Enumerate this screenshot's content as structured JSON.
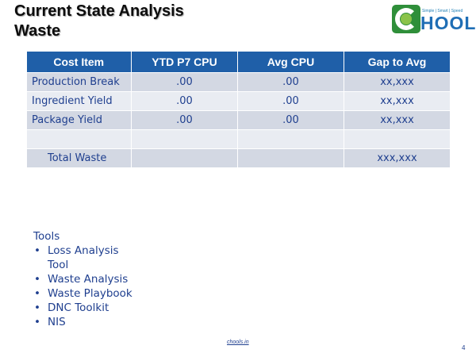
{
  "slide": {
    "title_line1": "Current State Analysis",
    "title_line2": "Waste"
  },
  "logo": {
    "tagline": "Simple | Smart | Speed",
    "wordmark": "HOOLS",
    "brand_color": "#1f6eb5",
    "mark_color": "#2f8f3a"
  },
  "table": {
    "headers": [
      "Cost Item",
      "YTD P7 CPU",
      "Avg CPU",
      "Gap to Avg"
    ],
    "rows": [
      [
        "Production Break",
        ".00",
        ".00",
        "xx,xxx"
      ],
      [
        "Ingredient Yield",
        ".00",
        ".00",
        "xx,xxx"
      ],
      [
        "Package Yield",
        ".00",
        ".00",
        "xx,xxx"
      ],
      [
        "",
        "",
        "",
        ""
      ],
      [
        "Total Waste",
        "",
        "",
        "xxx,xxx"
      ]
    ],
    "header_color": "#1f5fa8"
  },
  "tools": {
    "heading": "Tools",
    "items": [
      "Loss Analysis Tool",
      "Waste Analysis",
      "Waste Playbook",
      "DNC Toolkit",
      "NIS"
    ]
  },
  "footer": {
    "link": "chools.in",
    "page_number": "4"
  }
}
